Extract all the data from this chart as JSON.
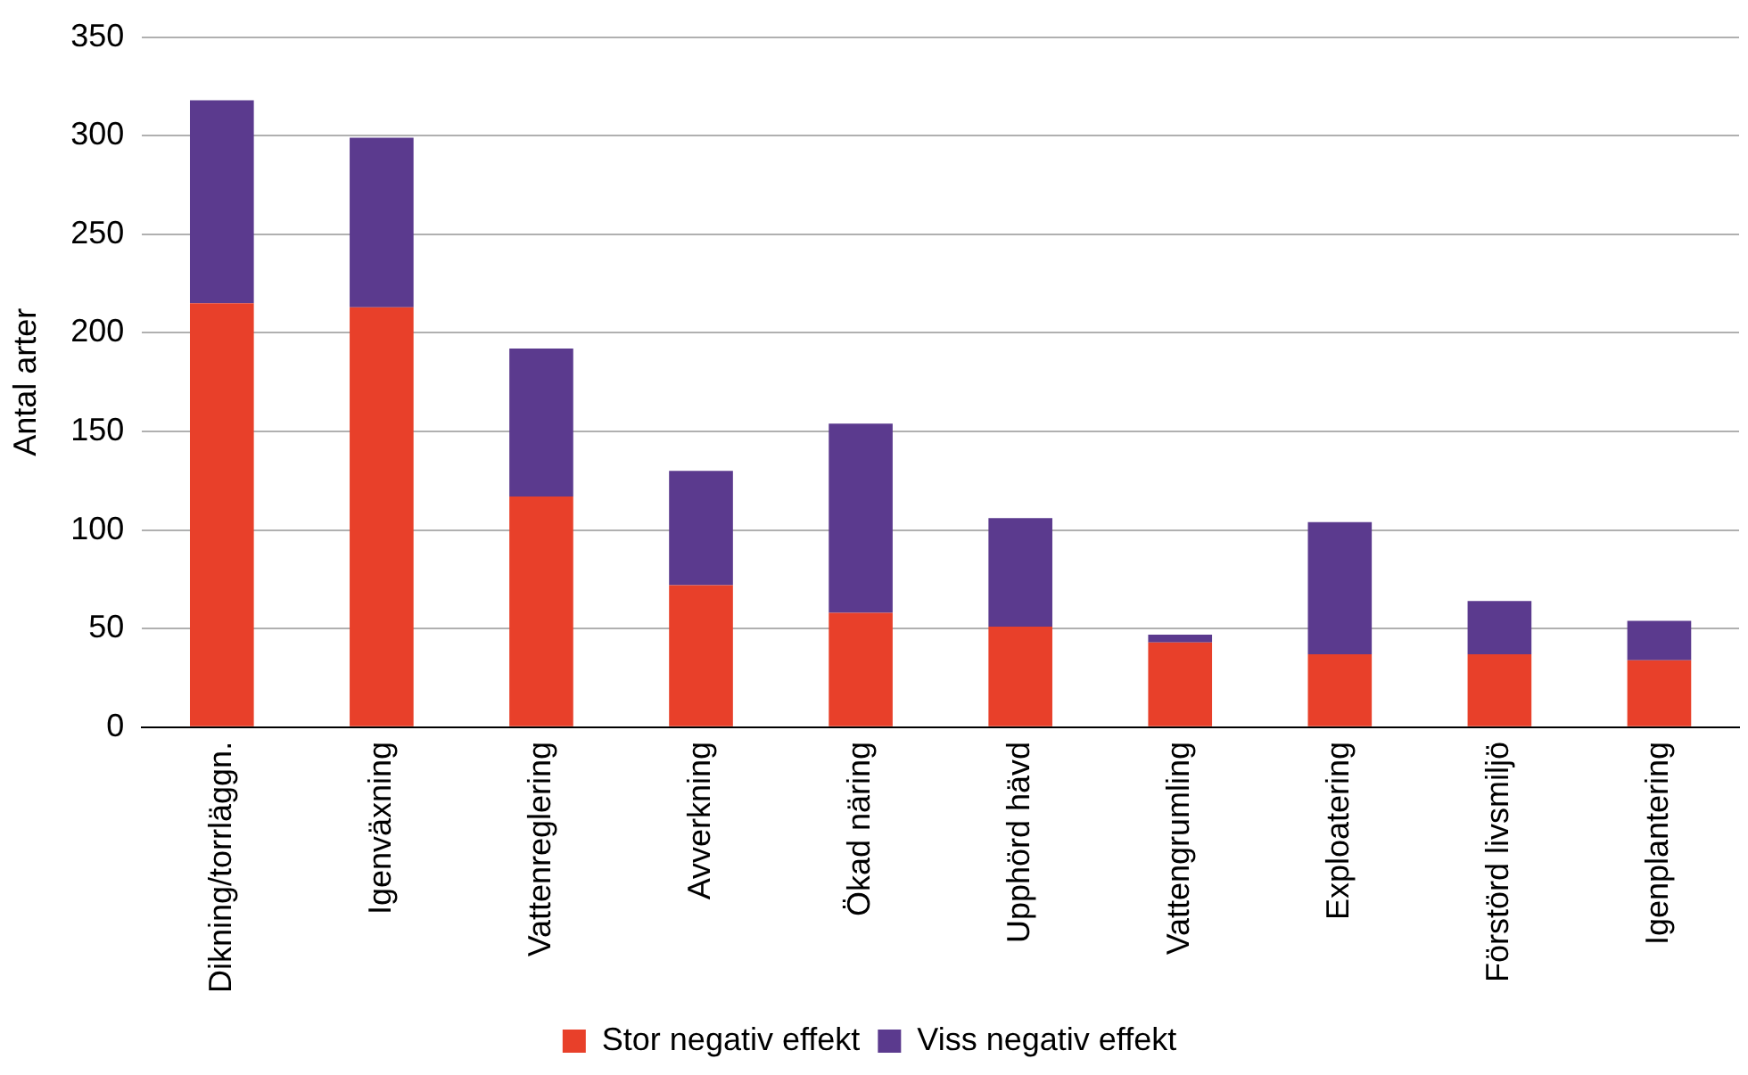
{
  "chart_data": {
    "type": "bar",
    "stacked": true,
    "ylabel": "Antal arter",
    "categories": [
      "Dikning/torrläggn.",
      "Igenväxning",
      "Vattenreglering",
      "Avverkning",
      "Ökad näring",
      "Upphörd hävd",
      "Vattengrumling",
      "Exploatering",
      "Förstörd livsmiljö",
      "Igenplantering"
    ],
    "series": [
      {
        "name": "Stor negativ effekt",
        "color": "#e8402a",
        "values": [
          215,
          213,
          117,
          72,
          58,
          51,
          43,
          37,
          37,
          34
        ]
      },
      {
        "name": "Viss negativ effekt",
        "color": "#5b3a8e",
        "values": [
          103,
          86,
          75,
          58,
          96,
          55,
          4,
          67,
          27,
          20
        ]
      }
    ],
    "ylim": [
      0,
      350
    ],
    "yticks": [
      0,
      50,
      100,
      150,
      200,
      250,
      300,
      350
    ],
    "grid": "y",
    "legend": "bottom"
  }
}
